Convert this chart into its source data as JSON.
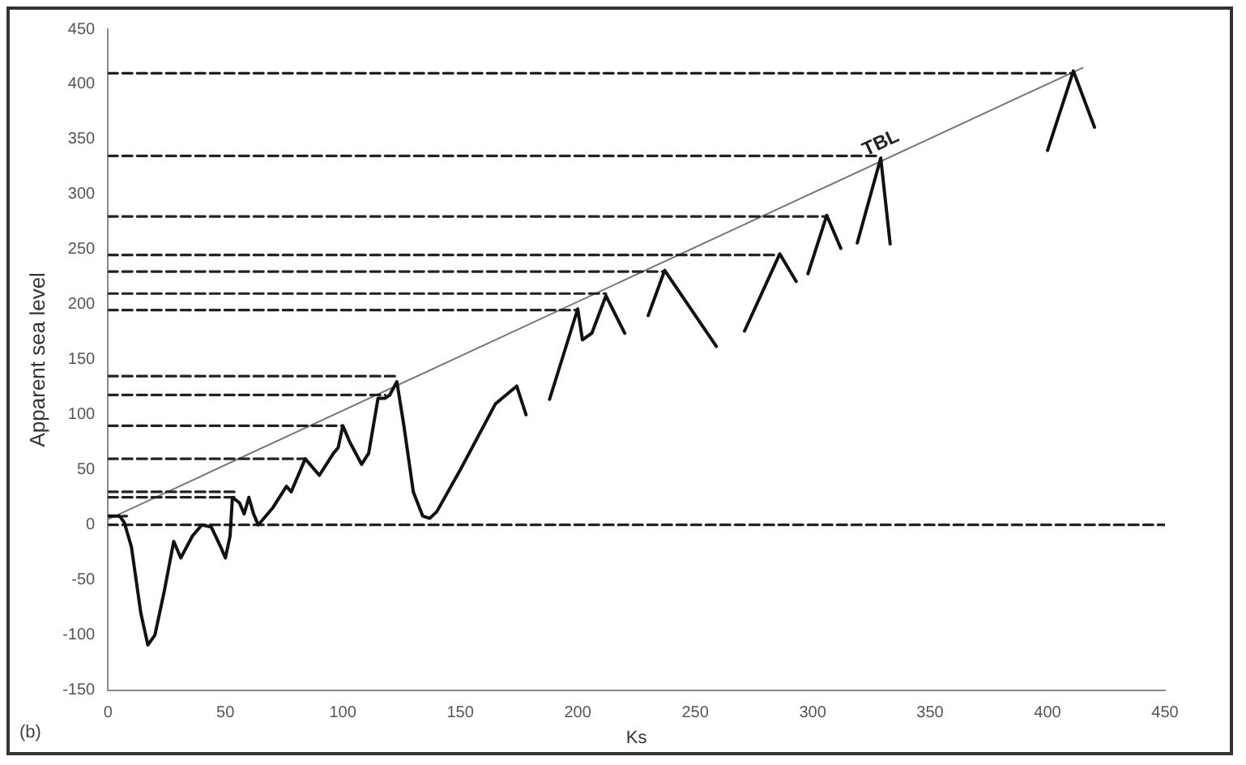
{
  "chart_data": {
    "type": "line",
    "xlabel": "Ks",
    "ylabel": "Apparent sea level",
    "annotations": [
      "(b)"
    ],
    "xlim": [
      0,
      450
    ],
    "xticks": [
      0,
      50,
      100,
      150,
      200,
      250,
      300,
      350,
      400,
      450
    ],
    "ylim": [
      -150,
      450
    ],
    "yticks": [
      -150,
      -100,
      -50,
      0,
      50,
      100,
      150,
      200,
      250,
      300,
      350,
      400,
      450
    ],
    "grid": false,
    "legend": false,
    "marker": "none",
    "series": [
      {
        "color": "#111111",
        "line_style": "solid",
        "x": [
          0,
          5,
          7,
          10,
          14,
          17,
          20,
          24,
          28,
          31,
          36,
          40,
          44,
          48,
          50,
          52,
          53,
          56,
          58,
          60,
          62,
          64,
          70,
          76,
          78,
          84,
          90,
          96,
          98,
          100,
          103,
          108,
          111,
          115,
          118,
          120,
          123,
          126,
          130,
          134,
          137,
          140,
          150,
          165,
          174,
          178,
          183,
          188,
          200,
          202,
          206,
          212,
          220,
          225,
          230,
          237,
          259,
          265,
          271,
          286,
          293,
          295,
          298,
          306,
          312,
          315,
          319,
          329,
          333,
          370,
          400,
          411,
          420
        ],
        "values": [
          8,
          8,
          2,
          -20,
          -80,
          -109,
          -100,
          -60,
          -15,
          -30,
          -10,
          0,
          -2,
          -20,
          -30,
          -10,
          25,
          20,
          10,
          25,
          10,
          0,
          15,
          35,
          30,
          60,
          45,
          65,
          70,
          90,
          75,
          55,
          65,
          115,
          115,
          118,
          130,
          90,
          30,
          8,
          6,
          12,
          50,
          110,
          126,
          100,
          null,
          114,
          196,
          168,
          174,
          208,
          174,
          null,
          190,
          231,
          162,
          null,
          176,
          246,
          221,
          null,
          228,
          281,
          251,
          null,
          256,
          333,
          255,
          null,
          340,
          412,
          361
        ]
      },
      {
        "color": "#222222",
        "line_style": "dashed",
        "x": [
          0,
          411
        ],
        "values": [
          410,
          410
        ]
      },
      {
        "color": "#222222",
        "line_style": "dashed",
        "x": [
          0,
          329
        ],
        "values": [
          335,
          335
        ]
      },
      {
        "color": "#222222",
        "line_style": "dashed",
        "x": [
          0,
          306
        ],
        "values": [
          280,
          280
        ]
      },
      {
        "color": "#222222",
        "line_style": "dashed",
        "x": [
          0,
          286
        ],
        "values": [
          245,
          245
        ]
      },
      {
        "color": "#222222",
        "line_style": "dashed",
        "x": [
          0,
          237
        ],
        "values": [
          230,
          230
        ]
      },
      {
        "color": "#222222",
        "line_style": "dashed",
        "x": [
          0,
          212
        ],
        "values": [
          210,
          210
        ]
      },
      {
        "color": "#222222",
        "line_style": "dashed",
        "x": [
          0,
          200
        ],
        "values": [
          195,
          195
        ]
      },
      {
        "color": "#222222",
        "line_style": "dashed",
        "x": [
          0,
          123
        ],
        "values": [
          135,
          135
        ]
      },
      {
        "color": "#222222",
        "line_style": "dashed",
        "x": [
          0,
          118
        ],
        "values": [
          118,
          118
        ]
      },
      {
        "color": "#222222",
        "line_style": "dashed",
        "x": [
          0,
          100
        ],
        "values": [
          90,
          90
        ]
      },
      {
        "color": "#222222",
        "line_style": "dashed",
        "x": [
          0,
          84
        ],
        "values": [
          60,
          60
        ]
      },
      {
        "color": "#222222",
        "line_style": "dashed",
        "x": [
          0,
          55
        ],
        "values": [
          30,
          30
        ]
      },
      {
        "color": "#222222",
        "line_style": "dashed",
        "x": [
          0,
          55
        ],
        "values": [
          25,
          25
        ]
      },
      {
        "color": "#222222",
        "line_style": "dashed",
        "x": [
          0,
          8
        ],
        "values": [
          8,
          8
        ]
      },
      {
        "color": "#222222",
        "line_style": "dashed",
        "x": [
          0,
          450
        ],
        "values": [
          0,
          0
        ]
      },
      {
        "name": "TBL",
        "color": "#777777",
        "line_style": "solid",
        "x": [
          0,
          415
        ],
        "values": [
          5,
          415
        ]
      }
    ]
  }
}
